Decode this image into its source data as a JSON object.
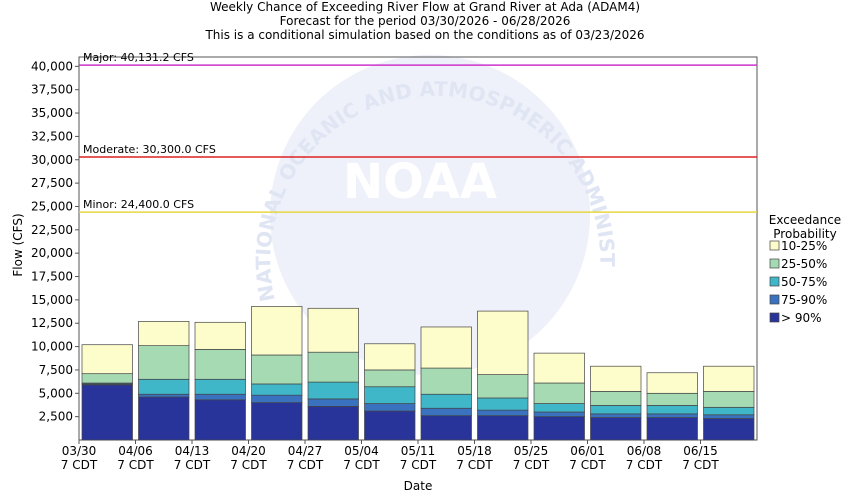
{
  "chart_data": {
    "type": "stacked_bar",
    "title": "Weekly Chance of Exceeding River Flow at Grand River at Ada (ADAM4)",
    "subtitle": "Forecast for the period 03/30/2026 - 06/28/2026",
    "note": "This is a conditional simulation based on the conditions as of 03/23/2026",
    "x_label": "Date",
    "y_label": "Flow (CFS)",
    "categories": [
      "03/30",
      "04/06",
      "04/13",
      "04/20",
      "04/27",
      "05/04",
      "05/11",
      "05/18",
      "05/25",
      "06/01",
      "06/08",
      "06/15"
    ],
    "category_times": [
      "7 CDT",
      "7 CDT",
      "7 CDT",
      "7 CDT",
      "7 CDT",
      "7 CDT",
      "7 CDT",
      "7 CDT",
      "7 CDT",
      "7 CDT",
      "7 CDT",
      "7 CDT"
    ],
    "series": [
      {
        "name": "> 90%",
        "color": "#28349a",
        "values": [
          5900,
          4600,
          4300,
          4000,
          3600,
          3100,
          2600,
          2600,
          2500,
          2400,
          2400,
          2300
        ]
      },
      {
        "name": "75-90%",
        "color": "#3a72c0",
        "values": [
          100,
          300,
          600,
          800,
          800,
          800,
          800,
          600,
          500,
          400,
          400,
          400
        ]
      },
      {
        "name": "50-75%",
        "color": "#40b7c9",
        "values": [
          100,
          1600,
          1600,
          1200,
          1800,
          1800,
          1500,
          1300,
          900,
          900,
          900,
          800
        ]
      },
      {
        "name": "25-50%",
        "color": "#a6dab3",
        "values": [
          1000,
          3600,
          3200,
          3100,
          3200,
          1800,
          2800,
          2500,
          2200,
          1500,
          1300,
          1700
        ]
      },
      {
        "name": "10-25%",
        "color": "#fdfccb",
        "values": [
          3100,
          2600,
          2900,
          5200,
          4700,
          2800,
          4400,
          6800,
          3200,
          2700,
          2200,
          2700
        ]
      }
    ],
    "legend_title": "Exceedance Probability",
    "thresholds": [
      {
        "label": "Major: 40,131.2 CFS",
        "value": 40131.2,
        "color": "#cc33cc"
      },
      {
        "label": "Moderate: 30,300.0 CFS",
        "value": 30300,
        "color": "#dd2222"
      },
      {
        "label": "Minor: 24,400.0 CFS",
        "value": 24400,
        "color": "#e8d640"
      }
    ],
    "ylim": [
      0,
      41000
    ],
    "yticks": [
      {
        "value": 2500,
        "label": "2,500"
      },
      {
        "value": 5000,
        "label": "5,000"
      },
      {
        "value": 7500,
        "label": "7,500"
      },
      {
        "value": 10000,
        "label": "10,000"
      },
      {
        "value": 12500,
        "label": "12,500"
      },
      {
        "value": 15000,
        "label": "15,000"
      },
      {
        "value": 17500,
        "label": "17,500"
      },
      {
        "value": 20000,
        "label": "20,000"
      },
      {
        "value": 22500,
        "label": "22,500"
      },
      {
        "value": 25000,
        "label": "25,000"
      },
      {
        "value": 27500,
        "label": "27,500"
      },
      {
        "value": 30000,
        "label": "30,000"
      },
      {
        "value": 32500,
        "label": "32,500"
      },
      {
        "value": 35000,
        "label": "35,000"
      },
      {
        "value": 37500,
        "label": "37,500"
      },
      {
        "value": 40000,
        "label": "40,000"
      }
    ],
    "watermark": {
      "logo": "NOAA",
      "ring": "NATIONAL OCEANIC AND ATMOSPHERIC ADMINISTRATION"
    }
  }
}
